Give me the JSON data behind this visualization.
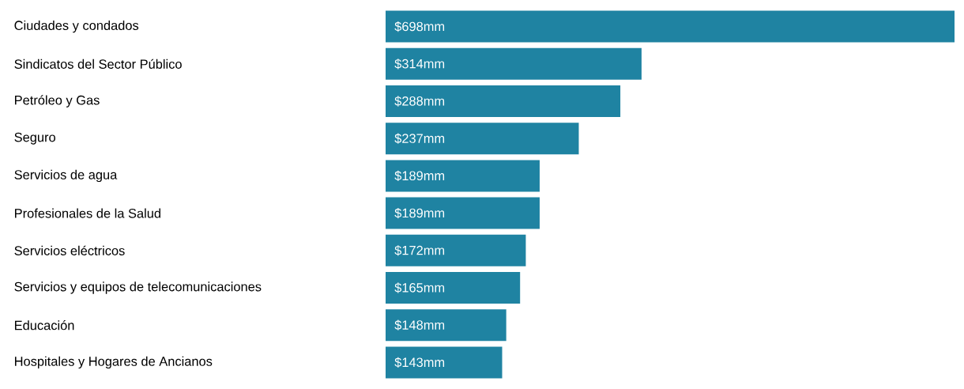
{
  "chart_data": {
    "type": "bar",
    "orientation": "horizontal",
    "color": "#1f83a2",
    "categories": [
      "Ciudades y condados",
      "Sindicatos del Sector Público",
      "Petróleo y Gas",
      "Seguro",
      "Servicios de agua",
      "Profesionales de la Salud",
      "Servicios eléctricos",
      "Servicios y equipos de telecomunicaciones",
      "Educación",
      "Hospitales y Hogares de Ancianos"
    ],
    "values": [
      698,
      314,
      288,
      237,
      189,
      189,
      172,
      165,
      148,
      143
    ],
    "value_labels": [
      "$698mm",
      "$314mm",
      "$288mm",
      "$237mm",
      "$189mm",
      "$189mm",
      "$172mm",
      "$165mm",
      "$148mm",
      "$143mm"
    ]
  }
}
